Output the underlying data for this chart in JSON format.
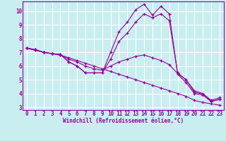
{
  "xlabel": "Windchill (Refroidissement éolien,°C)",
  "background_color": "#c8eef0",
  "grid_color": "#ffffff",
  "line_color": "#990099",
  "xlim": [
    -0.5,
    23.5
  ],
  "ylim": [
    2.8,
    10.7
  ],
  "xticks": [
    0,
    1,
    2,
    3,
    4,
    5,
    6,
    7,
    8,
    9,
    10,
    11,
    12,
    13,
    14,
    15,
    16,
    17,
    18,
    19,
    20,
    21,
    22,
    23
  ],
  "yticks": [
    3,
    4,
    5,
    6,
    7,
    8,
    9,
    10
  ],
  "series": [
    [
      7.3,
      7.2,
      7.0,
      6.9,
      6.85,
      6.3,
      6.0,
      5.5,
      5.5,
      5.5,
      7.0,
      8.5,
      9.2,
      10.1,
      10.5,
      9.7,
      10.35,
      9.8,
      5.4,
      4.8,
      4.0,
      3.9,
      3.4,
      3.6
    ],
    [
      7.3,
      7.2,
      7.0,
      6.9,
      6.85,
      6.3,
      6.0,
      5.5,
      5.5,
      5.5,
      6.5,
      7.8,
      8.4,
      9.2,
      9.8,
      9.5,
      9.8,
      9.3,
      5.5,
      5.0,
      4.2,
      4.0,
      3.5,
      3.7
    ],
    [
      7.3,
      7.15,
      7.0,
      6.9,
      6.8,
      6.6,
      6.4,
      6.2,
      6.0,
      5.8,
      5.6,
      5.4,
      5.2,
      5.0,
      4.8,
      4.6,
      4.4,
      4.2,
      4.0,
      3.8,
      3.5,
      3.35,
      3.25,
      3.15
    ],
    [
      7.3,
      7.15,
      7.0,
      6.9,
      6.8,
      6.5,
      6.3,
      6.0,
      5.8,
      5.7,
      6.0,
      6.3,
      6.5,
      6.7,
      6.8,
      6.6,
      6.4,
      6.1,
      5.45,
      5.0,
      4.1,
      3.95,
      3.45,
      3.55
    ]
  ]
}
